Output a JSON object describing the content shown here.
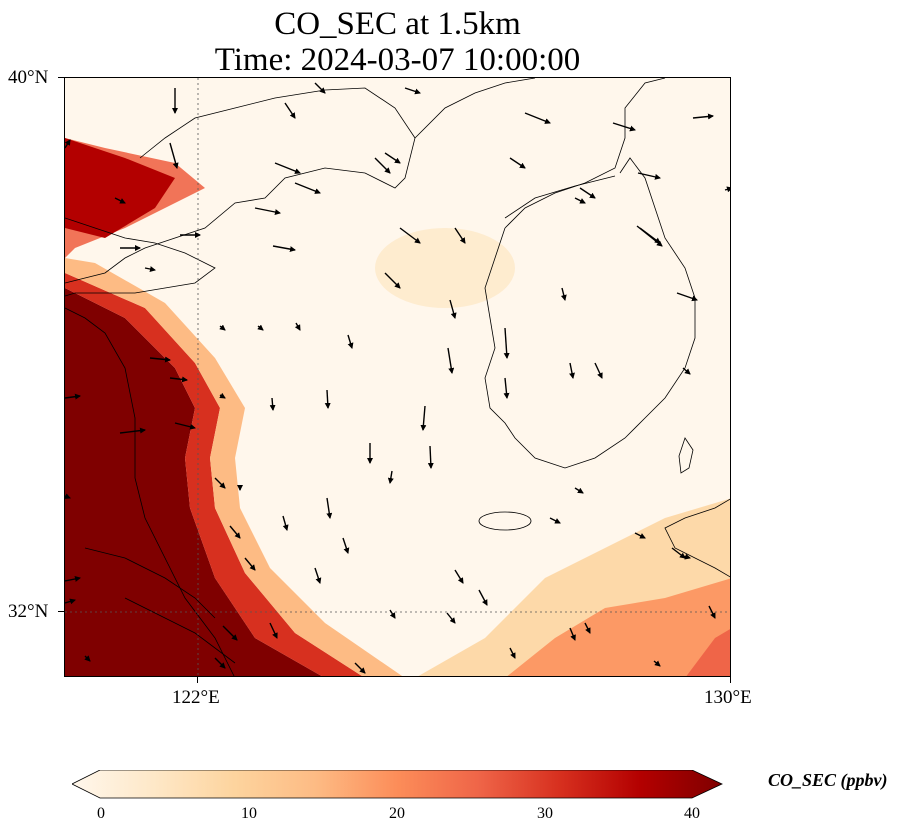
{
  "title": "CO_SEC at 1.5km",
  "subtitle": "Time: 2024-03-07 10:00:00",
  "axes": {
    "lat_labels": [
      "40°N",
      "32°N"
    ],
    "lon_labels": [
      "122°E",
      "130°E"
    ]
  },
  "colorbar": {
    "label": "CO_SEC (ppbv)",
    "ticks": [
      "0",
      "10",
      "20",
      "30",
      "40"
    ],
    "colors": [
      "#fff7ec",
      "#fee8c8",
      "#fdd49e",
      "#fdbb84",
      "#fc8d59",
      "#ef6548",
      "#d7301f",
      "#b30000",
      "#7f0000"
    ]
  },
  "map": {
    "variable": "CO_SEC",
    "units": "ppbv",
    "lon_range": [
      120,
      130
    ],
    "lat_range": [
      31,
      40
    ],
    "gridlines": "dotted at 122°E and 32°N",
    "wind_vectors": "black arrows",
    "coastlines": "black"
  }
}
